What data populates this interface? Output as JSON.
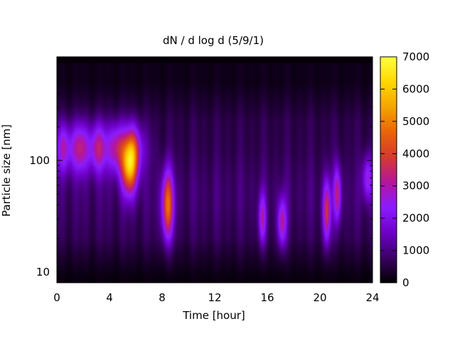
{
  "chart_data": {
    "type": "heatmap",
    "title": "dN / d log d (5/9/1)",
    "xlabel": "Time [hour]",
    "ylabel": "Particle size [nm]",
    "xlim": [
      0,
      24
    ],
    "ylim": [
      8,
      850
    ],
    "y_scale": "log",
    "x_ticks": [
      0,
      4,
      8,
      12,
      16,
      20,
      24
    ],
    "x_tick_labels": [
      "0",
      "4",
      "8",
      "12",
      "16",
      "20",
      "24"
    ],
    "y_ticks": [
      10,
      100
    ],
    "y_tick_labels": [
      "10",
      "100"
    ],
    "colorbar": {
      "range": [
        0,
        7000
      ],
      "ticks": [
        0,
        1000,
        2000,
        3000,
        4000,
        5000,
        6000,
        7000
      ],
      "tick_labels": [
        "0",
        "1000",
        "2000",
        "3000",
        "4000",
        "5000",
        "6000",
        "7000"
      ],
      "colormap": [
        "#000000",
        "#3a0064",
        "#6e00c8",
        "#8a1cff",
        "#b4169c",
        "#d43a2e",
        "#e8640a",
        "#f5a500",
        "#ffd800",
        "#ffff40"
      ]
    },
    "background_level": 900,
    "upper_edge_size_nm": 750,
    "features": [
      {
        "kind": "band",
        "t_start": 0,
        "t_end": 6.5,
        "center_nm": 130,
        "width_decades": 0.22,
        "level": 3900
      },
      {
        "kind": "blob",
        "t": 5.5,
        "center_nm": 90,
        "t_width": 0.6,
        "width_decades": 0.25,
        "level": 6100
      },
      {
        "kind": "blob",
        "t": 8.4,
        "center_nm": 40,
        "t_width": 0.45,
        "width_decades": 0.3,
        "level": 5300
      },
      {
        "kind": "blob",
        "t": 15.6,
        "center_nm": 30,
        "t_width": 0.3,
        "width_decades": 0.22,
        "level": 3300
      },
      {
        "kind": "blob",
        "t": 17.1,
        "center_nm": 28,
        "t_width": 0.35,
        "width_decades": 0.22,
        "level": 3600
      },
      {
        "kind": "blob",
        "t": 20.5,
        "center_nm": 35,
        "t_width": 0.3,
        "width_decades": 0.28,
        "level": 4300
      },
      {
        "kind": "blob",
        "t": 21.3,
        "center_nm": 50,
        "t_width": 0.3,
        "width_decades": 0.25,
        "level": 3600
      },
      {
        "kind": "blob",
        "t": 23.6,
        "center_nm": 70,
        "t_width": 0.4,
        "width_decades": 0.2,
        "level": 3000
      }
    ]
  }
}
